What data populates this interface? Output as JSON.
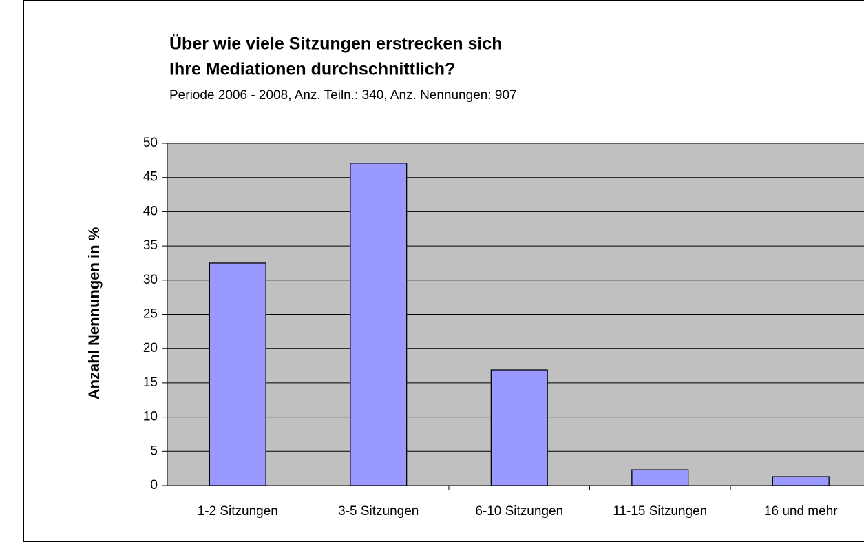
{
  "chart_data": {
    "type": "bar",
    "title": [
      "Über wie viele Sitzungen erstrecken sich",
      "Ihre Mediationen durchschnittlich?"
    ],
    "subtitle": "Periode 2006 - 2008,  Anz. Teiln.: 340, Anz. Nennungen: 907",
    "y_label": "Anzahl Nennungen in %",
    "categories": [
      "1-2 Sitzungen",
      "3-5 Sitzungen",
      "6-10 Sitzungen",
      "11-15 Sitzungen",
      "16 und mehr"
    ],
    "values": [
      32.5,
      47.1,
      16.9,
      2.3,
      1.3
    ],
    "color": "#9999ff",
    "ylim": [
      0,
      50
    ],
    "yticks": [
      0,
      5,
      10,
      15,
      20,
      25,
      30,
      35,
      40,
      45,
      50
    ],
    "grid": true
  }
}
